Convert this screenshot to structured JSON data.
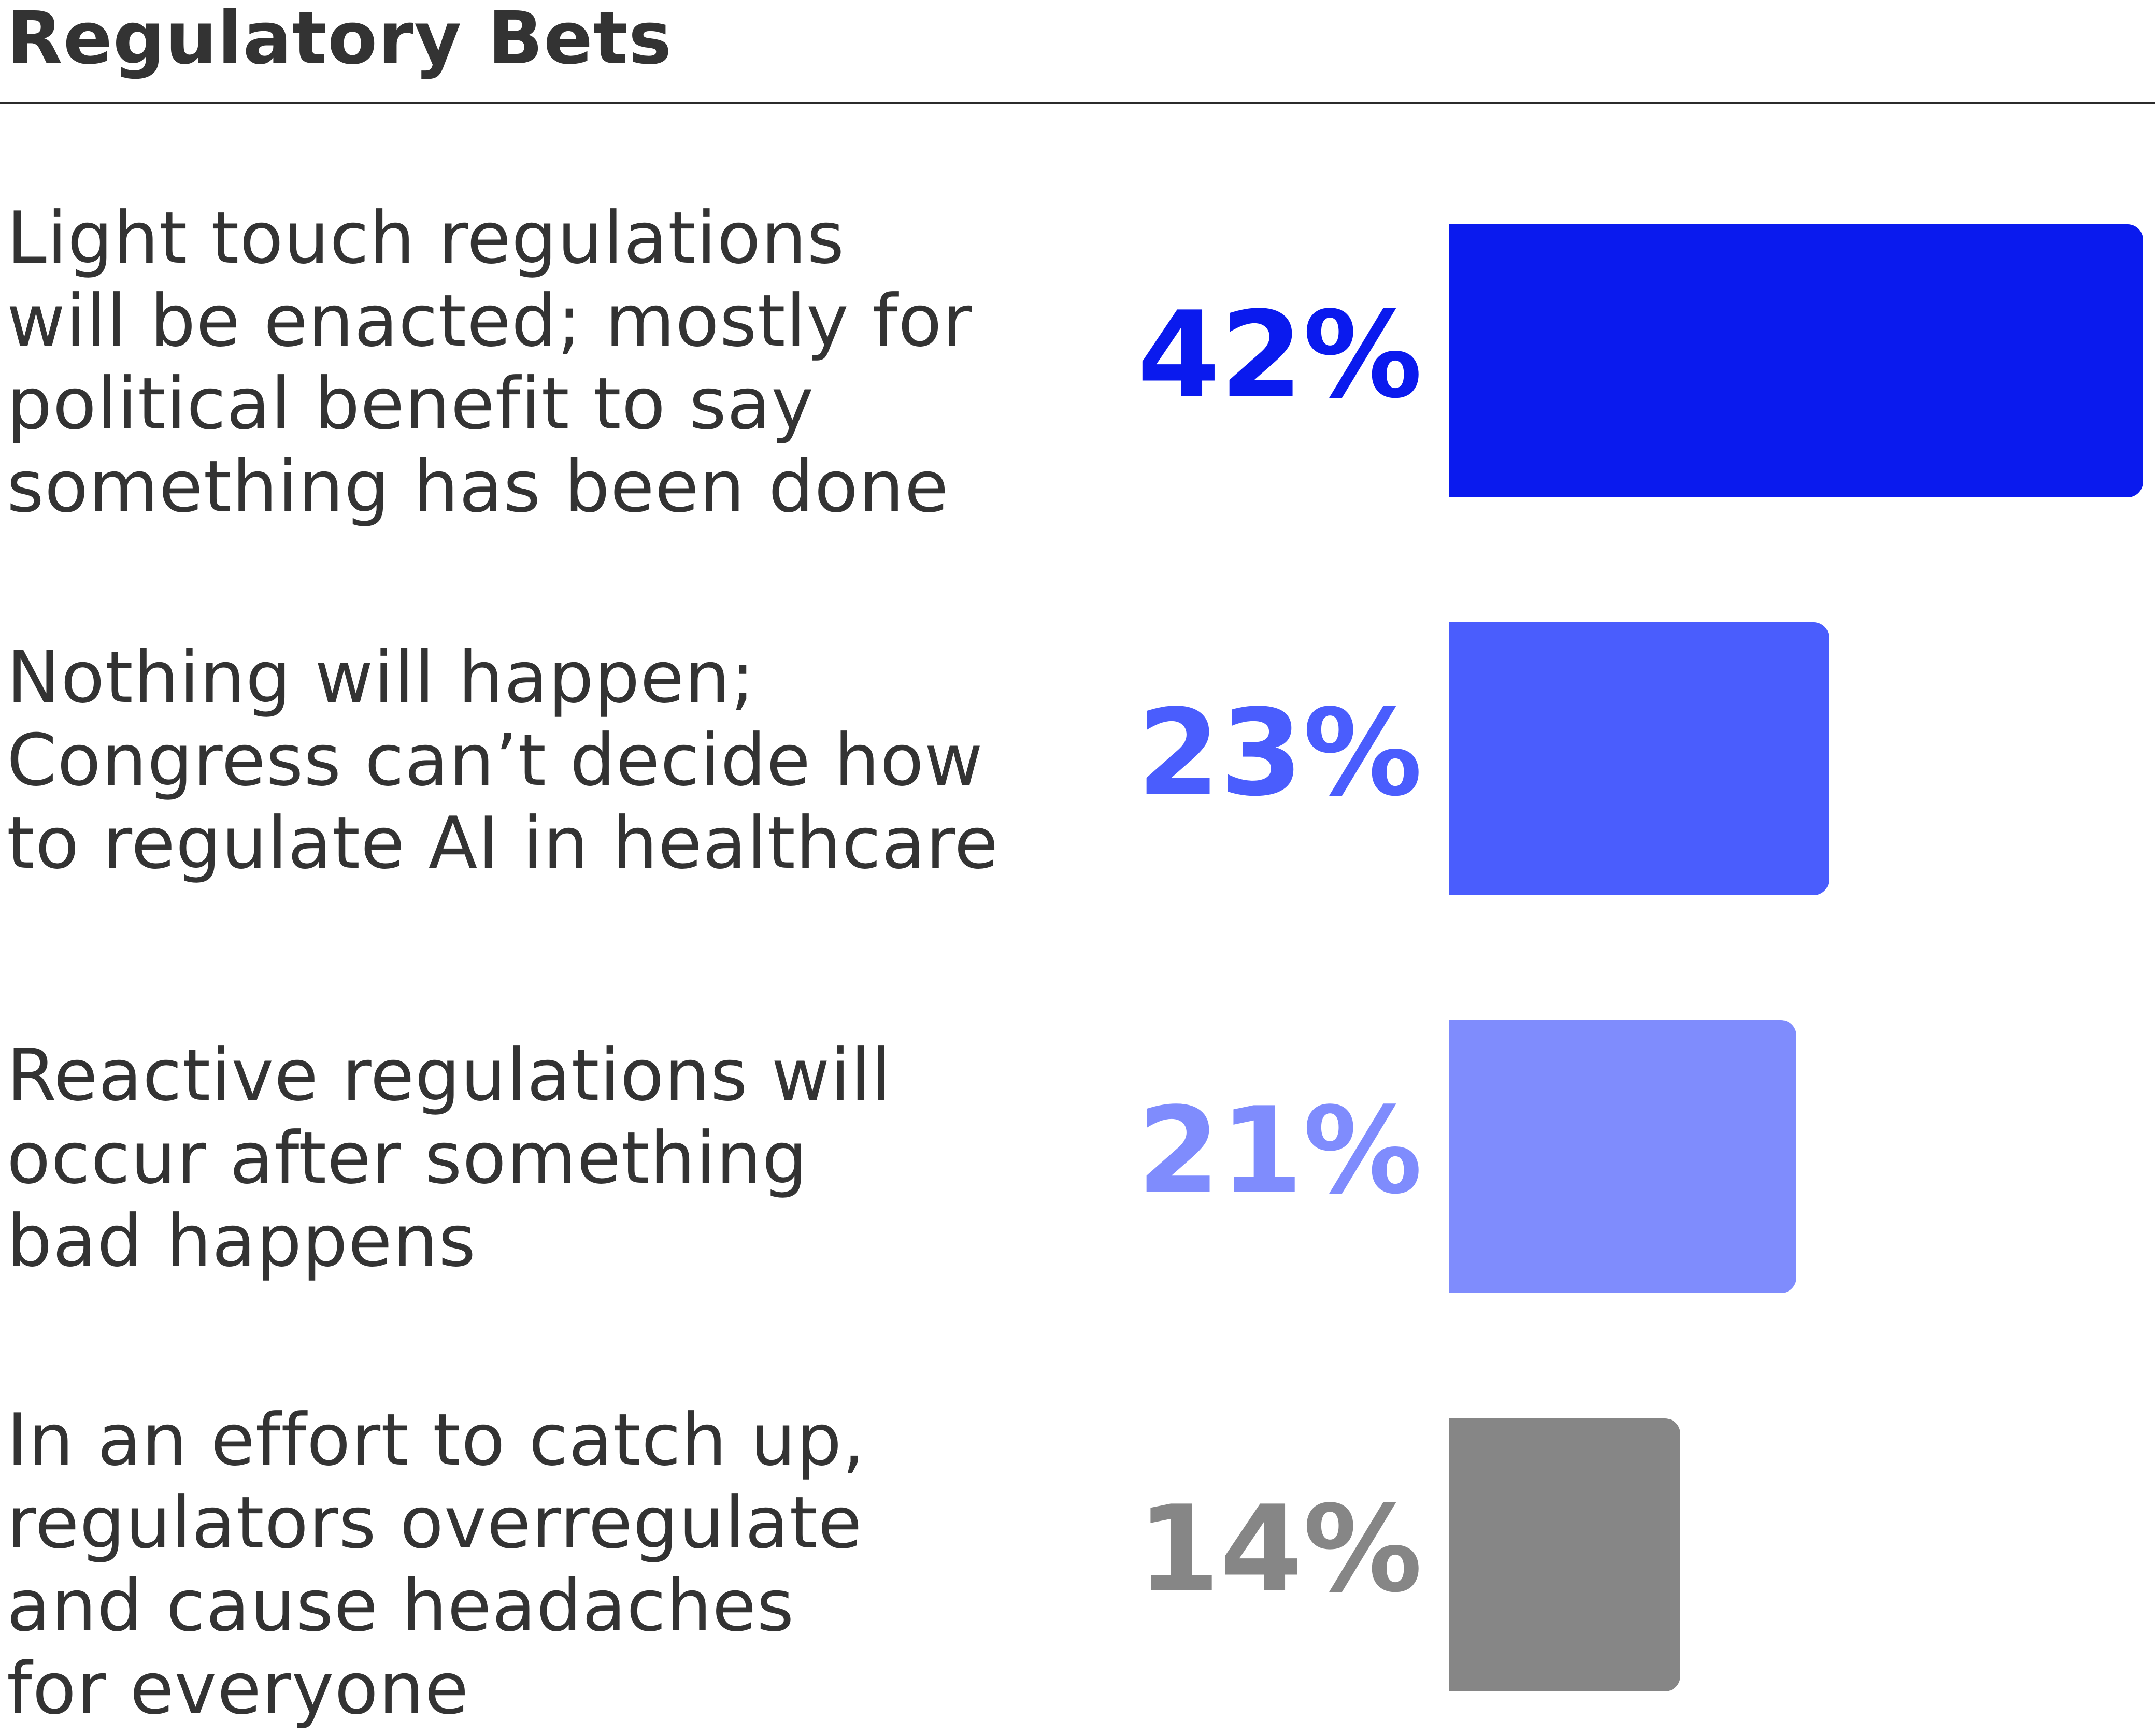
{
  "chart_data": {
    "type": "bar",
    "orientation": "horizontal",
    "title": "Regulatory Bets",
    "categories": [
      "Light touch regulations\nwill be enacted; mostly for\npolitical benefit to say\nsomething has been done",
      "Nothing will happen;\nCongress can’t decide how\nto regulate AI in healthcare",
      "Reactive regulations will\noccur after something\nbad happens",
      "In an effort to catch up,\nregulators overregulate\nand cause headaches\nfor everyone"
    ],
    "values": [
      42,
      23,
      21,
      14
    ],
    "value_labels": [
      "42%",
      "23%",
      "21%",
      "14%"
    ],
    "colors": [
      "#0a1aee",
      "#4a5dfd",
      "#7f8cfd",
      "#868686"
    ],
    "xlim": [
      0,
      42
    ],
    "grid": false,
    "legend": "none"
  }
}
